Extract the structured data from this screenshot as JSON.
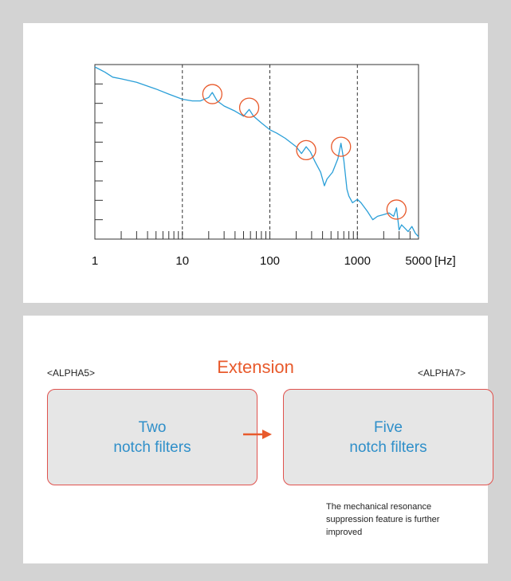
{
  "chart_data": {
    "type": "line",
    "xscale": "log",
    "xlim": [
      1,
      5000
    ],
    "x_ticks": [
      "1",
      "10",
      "100",
      "1000",
      "5000"
    ],
    "x_unit": "[Hz]",
    "vlines": [
      10,
      100,
      1000
    ],
    "series": [
      {
        "color": "#2a9fd8",
        "points": [
          [
            1,
            100
          ],
          [
            1.3,
            97
          ],
          [
            1.6,
            94
          ],
          [
            2,
            93
          ],
          [
            3,
            91
          ],
          [
            5,
            87
          ],
          [
            7,
            84
          ],
          [
            10,
            81
          ],
          [
            13,
            80
          ],
          [
            16,
            80
          ],
          [
            20,
            82
          ],
          [
            22,
            85
          ],
          [
            25,
            80
          ],
          [
            30,
            77
          ],
          [
            40,
            74
          ],
          [
            50,
            71
          ],
          [
            58,
            75
          ],
          [
            65,
            71
          ],
          [
            80,
            67
          ],
          [
            100,
            63
          ],
          [
            120,
            61
          ],
          [
            150,
            58
          ],
          [
            200,
            53
          ],
          [
            230,
            49
          ],
          [
            260,
            53
          ],
          [
            290,
            50
          ],
          [
            330,
            44
          ],
          [
            380,
            38
          ],
          [
            420,
            30
          ],
          [
            450,
            34
          ],
          [
            520,
            38
          ],
          [
            600,
            46
          ],
          [
            650,
            55
          ],
          [
            700,
            45
          ],
          [
            760,
            28
          ],
          [
            800,
            24
          ],
          [
            880,
            20
          ],
          [
            1000,
            22
          ],
          [
            1100,
            20
          ],
          [
            1300,
            15
          ],
          [
            1500,
            10
          ],
          [
            1700,
            12
          ],
          [
            2000,
            13
          ],
          [
            2300,
            14
          ],
          [
            2600,
            12
          ],
          [
            2800,
            17
          ],
          [
            3000,
            4
          ],
          [
            3200,
            7
          ],
          [
            3500,
            5
          ],
          [
            3800,
            3
          ],
          [
            4200,
            6
          ],
          [
            4600,
            2
          ],
          [
            5000,
            0
          ]
        ]
      }
    ],
    "ylim": [
      0,
      100
    ],
    "highlights": [
      [
        22,
        84
      ],
      [
        58,
        76
      ],
      [
        260,
        51
      ],
      [
        650,
        53
      ],
      [
        2800,
        16
      ]
    ]
  },
  "colors": {
    "accent": "#e85a2c",
    "blue": "#2a9fd8",
    "box_border": "#e0524e"
  },
  "extension": {
    "title": "Extension",
    "left_tag": "<ALPHA5>",
    "right_tag": "<ALPHA7>",
    "left_box": "Two\nnotch filters",
    "right_box": "Five\nnotch filters",
    "note": "The mechanical resonance suppression feature is further improved"
  }
}
